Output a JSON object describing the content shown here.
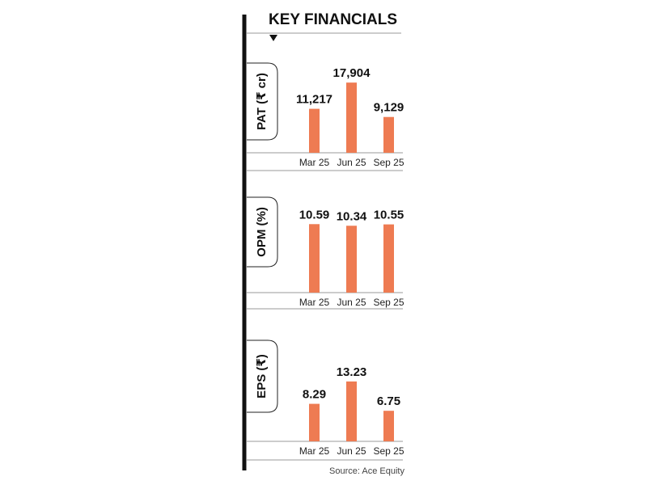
{
  "header": {
    "title": "KEY FINANCIALS"
  },
  "source": "Source: Ace Equity",
  "colors": {
    "bar": "#ee7b52",
    "spine": "#111111",
    "rule": "#9a9a9a"
  },
  "chart_data": [
    {
      "type": "bar",
      "title": "PAT (₹ cr)",
      "categories": [
        "Mar 25",
        "Jun 25",
        "Sep 25"
      ],
      "values": [
        11217,
        17904,
        9129
      ],
      "value_labels": [
        "11,217",
        "17,904",
        "9,129"
      ],
      "ylim": [
        0,
        20000
      ],
      "grid": false
    },
    {
      "type": "bar",
      "title": "OPM (%)",
      "categories": [
        "Mar 25",
        "Jun 25",
        "Sep 25"
      ],
      "values": [
        10.59,
        10.34,
        10.55
      ],
      "value_labels": [
        "10.59",
        "10.34",
        "10.55"
      ],
      "ylim": [
        0,
        12.5
      ],
      "grid": false
    },
    {
      "type": "bar",
      "title": "EPS (₹)",
      "categories": [
        "Mar 25",
        "Jun 25",
        "Sep 25"
      ],
      "values": [
        8.29,
        13.23,
        6.75
      ],
      "value_labels": [
        "8.29",
        "13.23",
        "6.75"
      ],
      "ylim": [
        0,
        15
      ],
      "grid": false
    }
  ]
}
